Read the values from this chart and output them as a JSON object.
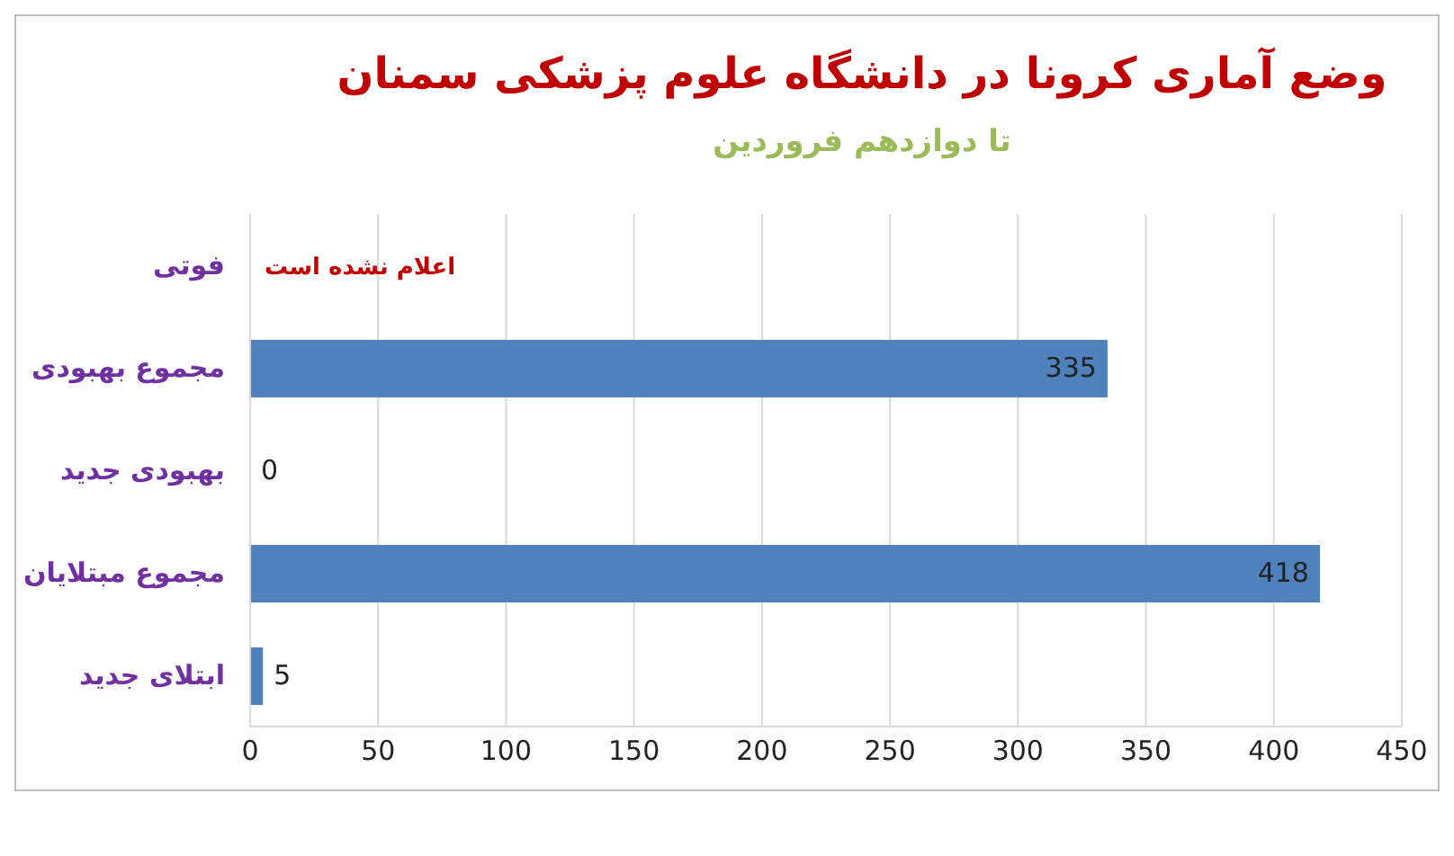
{
  "chart_data": {
    "type": "bar",
    "orientation": "horizontal",
    "title": "وضع آماری کرونا در دانشگاه علوم پزشکی سمنان",
    "subtitle": "تا دوازدهم فروردین",
    "categories": [
      "فوتی",
      "مجموع بهبودی",
      "بهبودی جدید",
      "مجموع مبتلایان",
      "ابتلای جدید"
    ],
    "values": [
      null,
      335,
      0,
      418,
      5
    ],
    "value_labels": [
      "اعلام نشده است",
      "335",
      "0",
      "418",
      "5"
    ],
    "color": "#4f81bd",
    "xlim": [
      0,
      450
    ],
    "xticks": [
      0,
      50,
      100,
      150,
      200,
      250,
      300,
      350,
      400,
      450
    ],
    "grid": "x"
  }
}
